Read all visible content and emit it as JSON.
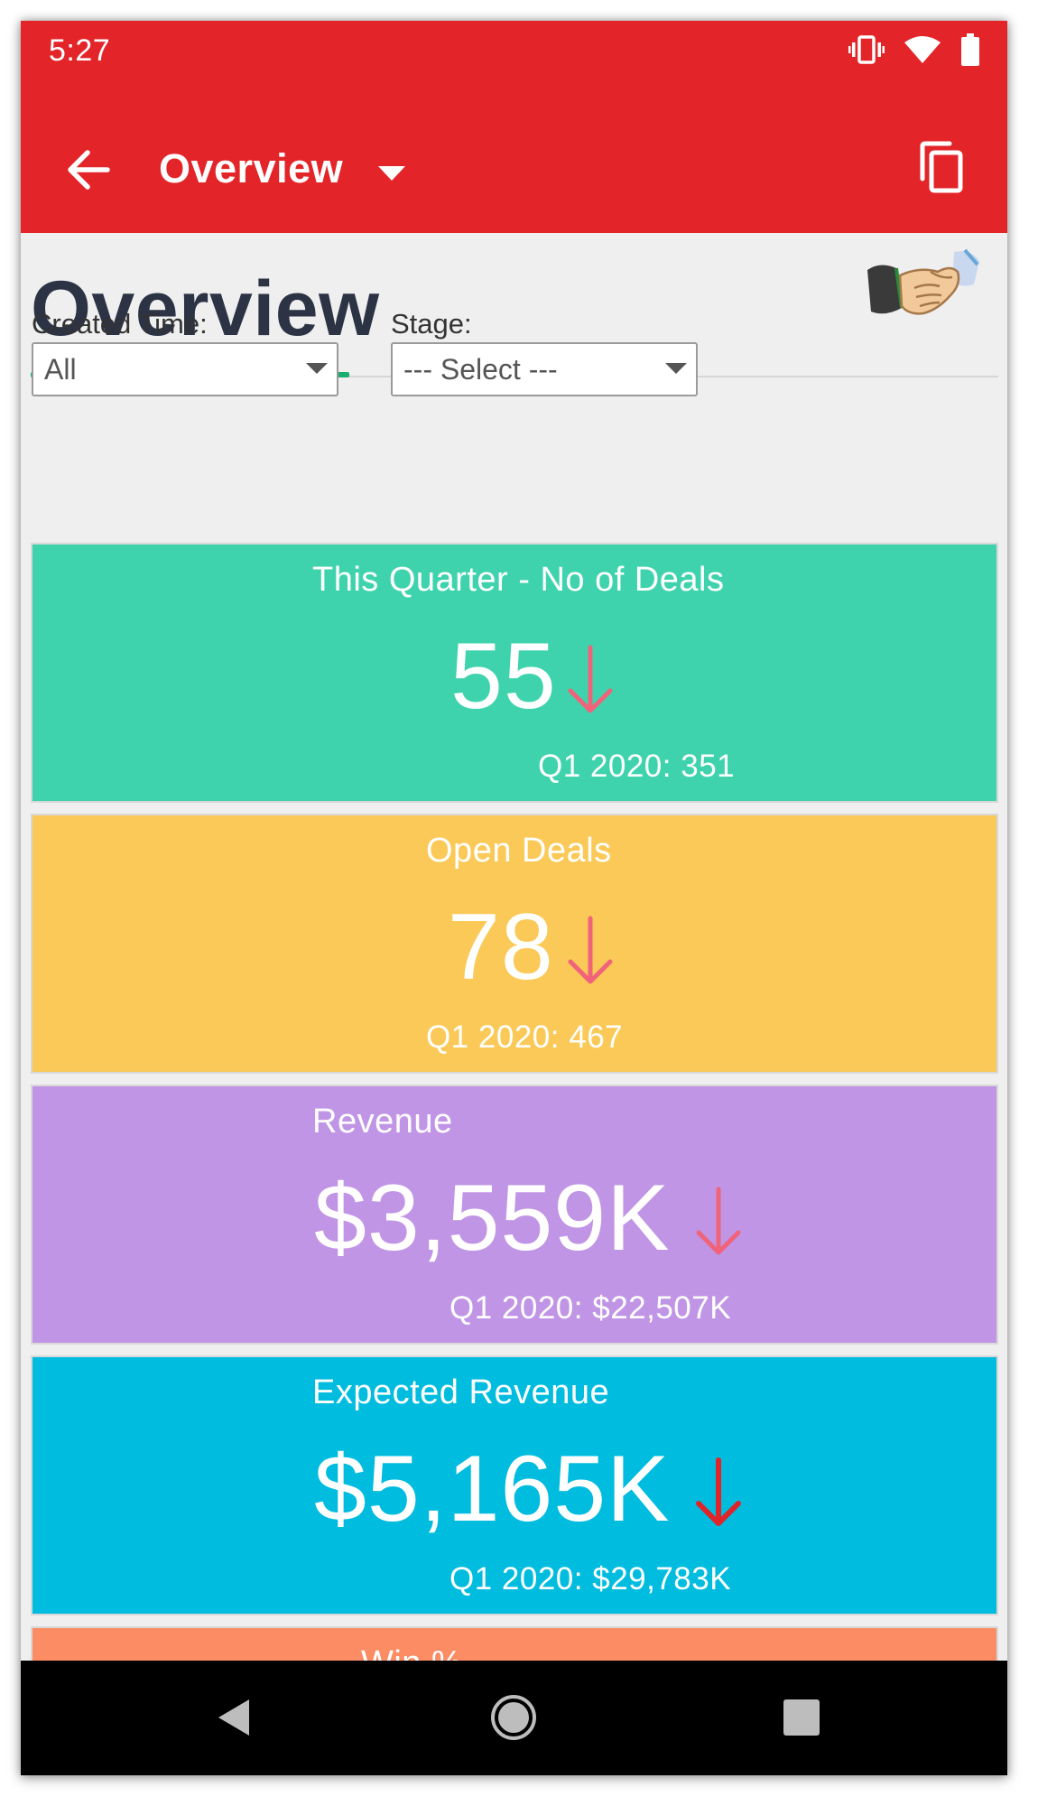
{
  "status_bar": {
    "time": "5:27",
    "icons": [
      "vibrate-icon",
      "wifi-icon",
      "battery-icon"
    ]
  },
  "app_bar": {
    "title": "Overview",
    "icons": [
      "back-arrow-icon",
      "dropdown-triangle-icon",
      "copy-icon"
    ],
    "color": "#e32428"
  },
  "page": {
    "title": "Overview",
    "underline_color": "#1aae6f",
    "icon": "handshake-icon"
  },
  "filters": {
    "created_time": {
      "label": "Created Time:",
      "value": "All"
    },
    "stage": {
      "label": "Stage:",
      "value": "--- Select ---"
    }
  },
  "cards": [
    {
      "title": "This Quarter - No of Deals",
      "value": "55",
      "compare": "Q1 2020: 351",
      "color": "#3fd3ad",
      "arrow_color": "#f0637a",
      "trend": "down"
    },
    {
      "title": "Open Deals",
      "value": "78",
      "compare": "Q1 2020: 467",
      "color": "#fbc957",
      "arrow_color": "#f0637a",
      "trend": "down"
    },
    {
      "title": "Revenue",
      "value": "$3,559K",
      "compare": "Q1 2020: $22,507K",
      "color": "#c195e5",
      "arrow_color": "#f0637a",
      "trend": "down"
    },
    {
      "title": "Expected Revenue",
      "value": "$5,165K",
      "compare": "Q1 2020: $29,783K",
      "color": "#00bcdf",
      "arrow_color": "#e0252a",
      "trend": "down"
    },
    {
      "title": "Win %",
      "color": "#fb8c64"
    }
  ],
  "nav_bar": {
    "icons": [
      "back-triangle-icon",
      "home-circle-icon",
      "recents-square-icon"
    ]
  }
}
